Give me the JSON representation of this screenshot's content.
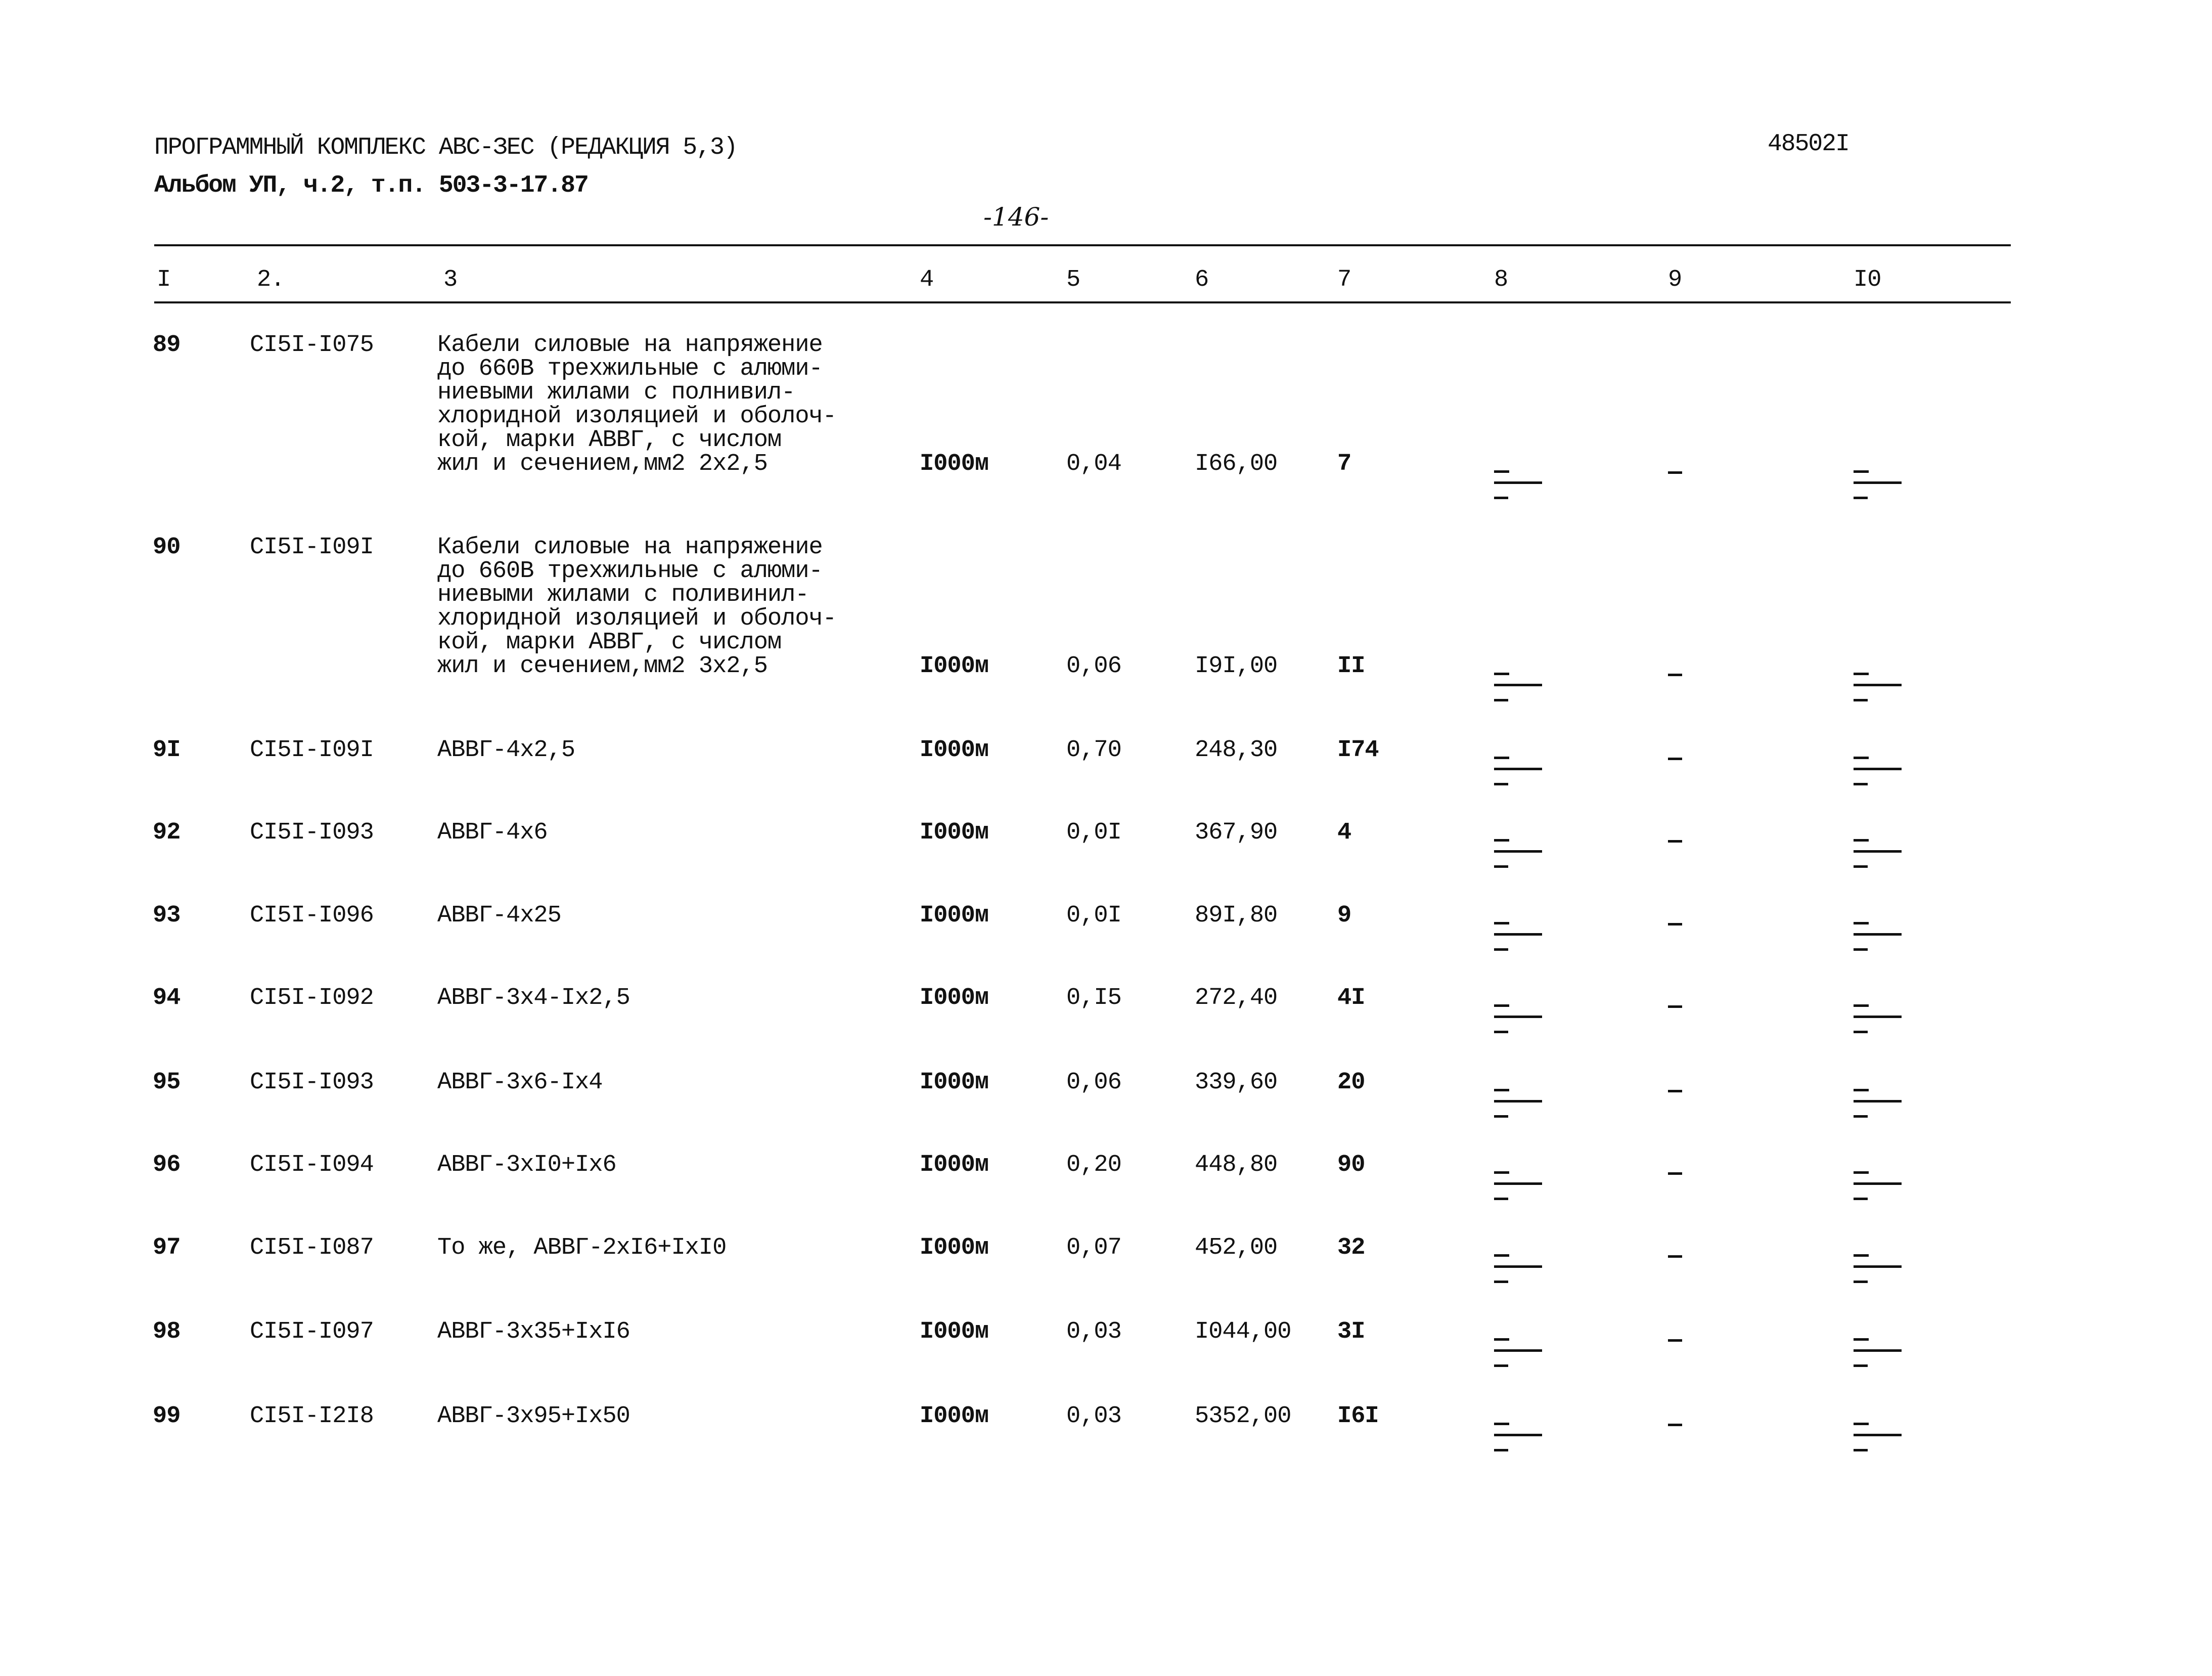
{
  "header": {
    "line1": "ПРОГРАММНЫЙ КОМПЛЕКС АВС-ЗЕС (РЕДАКЦИЯ 5,3)",
    "line2": "Альбом УП, ч.2, т.п. 503-3-17.87",
    "page_number": "-146-",
    "doc_number": "48502I"
  },
  "columns": [
    "I",
    "2.",
    "3",
    "4",
    "5",
    "6",
    "7",
    "8",
    "9",
    "I0"
  ],
  "rows": [
    {
      "n": "89",
      "code": "CI5I-I075",
      "desc": [
        "Кабели силовые на напряжение",
        "до 660В трехжильные с алюми-",
        "ниевыми жилами с полнивил-",
        "хлоридной изоляцией и оболоч-",
        "кой, марки АВВГ, с числом",
        "жил и сечением,мм2 2х2,5"
      ],
      "unit": "I000м",
      "qty": "0,04",
      "price": "I66,00",
      "c7": "7",
      "c8": "-",
      "c9": "-",
      "c10": "-"
    },
    {
      "n": "90",
      "code": "CI5I-I09I",
      "desc": [
        "Кабели силовые на напряжение",
        "до 660В трехжильные с алюми-",
        "ниевыми жилами с поливинил-",
        "хлоридной изоляцией и оболоч-",
        "кой, марки АВВГ, с числом",
        "жил и сечением,мм2 3х2,5"
      ],
      "unit": "I000м",
      "qty": "0,06",
      "price": "I9I,00",
      "c7": "II",
      "c8": "-",
      "c9": "-",
      "c10": "-"
    },
    {
      "n": "9I",
      "code": "CI5I-I09I",
      "desc": [
        "АВВГ-4х2,5"
      ],
      "unit": "I000м",
      "qty": "0,70",
      "price": "248,30",
      "c7": "I74",
      "c8": "-",
      "c9": "-",
      "c10": "-"
    },
    {
      "n": "92",
      "code": "CI5I-I093",
      "desc": [
        "АВВГ-4х6"
      ],
      "unit": "I000м",
      "qty": "0,0I",
      "price": "367,90",
      "c7": "4",
      "c8": "-",
      "c9": "-",
      "c10": "-"
    },
    {
      "n": "93",
      "code": "CI5I-I096",
      "desc": [
        "АВВГ-4х25"
      ],
      "unit": "I000м",
      "qty": "0,0I",
      "price": "89I,80",
      "c7": "9",
      "c8": "-",
      "c9": "-",
      "c10": "-"
    },
    {
      "n": "94",
      "code": "CI5I-I092",
      "desc": [
        "АВВГ-3х4-Iх2,5"
      ],
      "unit": "I000м",
      "qty": "0,I5",
      "price": "272,40",
      "c7": "4I",
      "c8": "-",
      "c9": "-",
      "c10": "-"
    },
    {
      "n": "95",
      "code": "CI5I-I093",
      "desc": [
        "АВВГ-3х6-Iх4"
      ],
      "unit": "I000м",
      "qty": "0,06",
      "price": "339,60",
      "c7": "20",
      "c8": "-",
      "c9": "-",
      "c10": "-"
    },
    {
      "n": "96",
      "code": "CI5I-I094",
      "desc": [
        "АВВГ-3хI0+Iх6"
      ],
      "unit": "I000м",
      "qty": "0,20",
      "price": "448,80",
      "c7": "90",
      "c8": "-",
      "c9": "-",
      "c10": "-"
    },
    {
      "n": "97",
      "code": "CI5I-I087",
      "desc": [
        "То же, АВВГ-2хI6+IхI0"
      ],
      "unit": "I000м",
      "qty": "0,07",
      "price": "452,00",
      "c7": "32",
      "c8": "-",
      "c9": "-",
      "c10": "-"
    },
    {
      "n": "98",
      "code": "CI5I-I097",
      "desc": [
        "АВВГ-3х35+IхI6"
      ],
      "unit": "I000м",
      "qty": "0,03",
      "price": "I044,00",
      "c7": "3I",
      "c8": "-",
      "c9": "-",
      "c10": "-"
    },
    {
      "n": "99",
      "code": "CI5I-I2I8",
      "desc": [
        "АВВГ-3х95+Iх50"
      ],
      "unit": "I000м",
      "qty": "0,03",
      "price": "5352,00",
      "c7": "I6I",
      "c8": "-",
      "c9": "-",
      "c10": "-"
    }
  ]
}
